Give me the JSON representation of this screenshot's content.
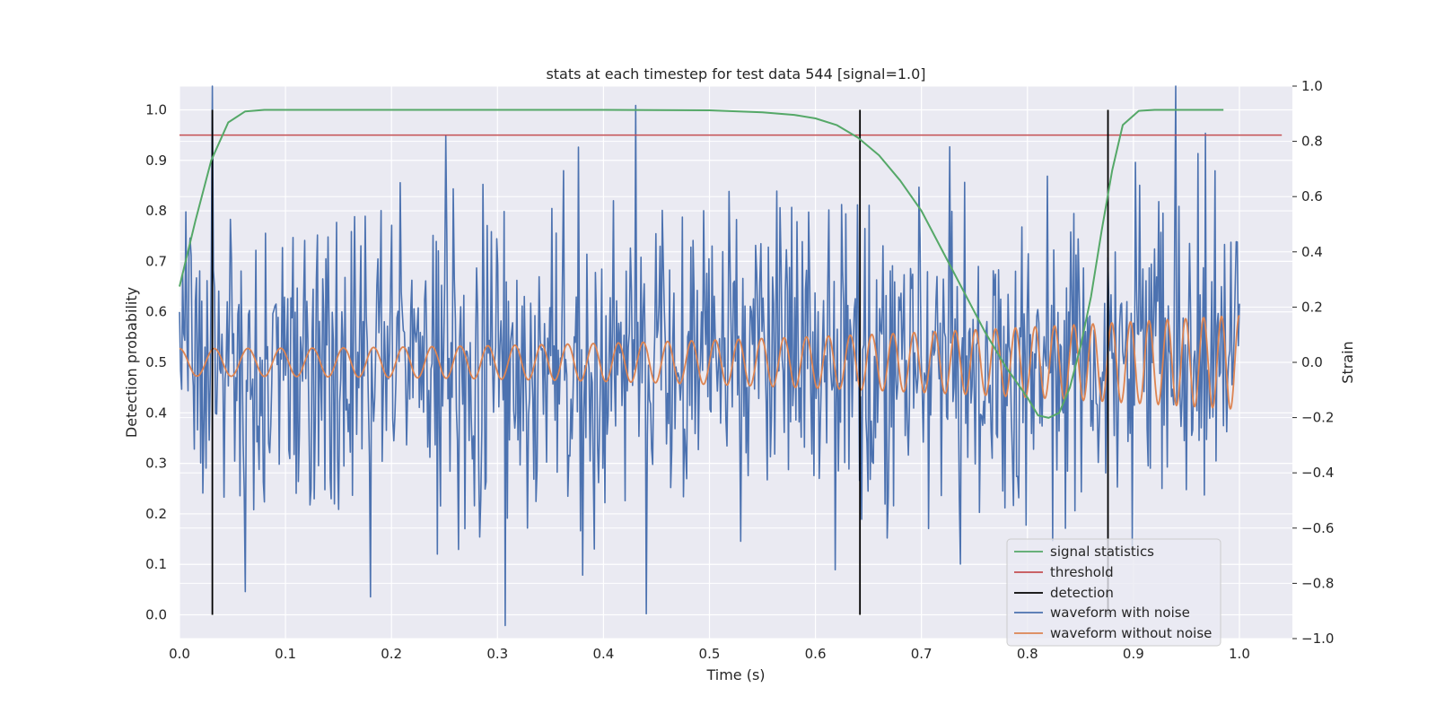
{
  "chart_data": {
    "type": "line",
    "title": "stats at each timestep for test data 544 [signal=1.0]",
    "xlabel": "Time (s)",
    "ylabel": "Detection probability",
    "ylabel_right": "Strain",
    "xlim": [
      0.0,
      1.05
    ],
    "ylim": [
      -0.047,
      1.047
    ],
    "ylim_right": [
      -1.0,
      1.0
    ],
    "grid": true,
    "legend_position": "lower right",
    "x_ticks": [
      "0.0",
      "0.1",
      "0.2",
      "0.3",
      "0.4",
      "0.5",
      "0.6",
      "0.7",
      "0.8",
      "0.9",
      "1.0"
    ],
    "y_ticks_left": [
      "0.0",
      "0.1",
      "0.2",
      "0.3",
      "0.4",
      "0.5",
      "0.6",
      "0.7",
      "0.8",
      "0.9",
      "1.0"
    ],
    "y_ticks_right": [
      "−1.0",
      "−0.8",
      "−0.6",
      "−0.4",
      "−0.2",
      "0.0",
      "0.2",
      "0.4",
      "0.6",
      "0.8",
      "1.0"
    ],
    "series": [
      {
        "name": "signal statistics",
        "color": "#55a868",
        "axis": "left",
        "x": [
          0.0,
          0.015,
          0.03,
          0.046,
          0.062,
          0.08,
          0.1,
          0.2,
          0.3,
          0.4,
          0.5,
          0.55,
          0.58,
          0.6,
          0.62,
          0.64,
          0.66,
          0.68,
          0.7,
          0.72,
          0.74,
          0.76,
          0.78,
          0.8,
          0.81,
          0.82,
          0.83,
          0.84,
          0.85,
          0.86,
          0.87,
          0.88,
          0.89,
          0.905,
          0.92,
          0.985
        ],
        "y": [
          0.65,
          0.78,
          0.9,
          0.975,
          0.997,
          1.0,
          1.0,
          1.0,
          1.0,
          1.0,
          0.999,
          0.995,
          0.99,
          0.983,
          0.97,
          0.945,
          0.91,
          0.86,
          0.8,
          0.72,
          0.64,
          0.56,
          0.49,
          0.43,
          0.395,
          0.39,
          0.4,
          0.45,
          0.53,
          0.63,
          0.76,
          0.88,
          0.97,
          0.998,
          1.0,
          1.0
        ]
      },
      {
        "name": "threshold",
        "color": "#c44e52",
        "axis": "left",
        "x": [
          0.0,
          1.04
        ],
        "y": [
          0.95,
          0.95
        ]
      },
      {
        "name": "detection",
        "color": "#000000",
        "axis": "left",
        "x_positions": [
          0.031,
          0.642,
          0.876
        ],
        "y_range": [
          0.0,
          1.0
        ]
      },
      {
        "name": "waveform with noise",
        "color": "#4c72b0",
        "axis": "right",
        "n_points": 1000,
        "x_range": [
          0.0,
          1.0
        ],
        "amplitude_std": 0.27,
        "peaks": [
          {
            "x": 0.031,
            "y": 1.0
          },
          {
            "x": 0.251,
            "y": 0.82
          },
          {
            "x": 0.43,
            "y": 0.93
          },
          {
            "x": 0.44,
            "y": -0.91
          },
          {
            "x": 0.062,
            "y": -0.83
          },
          {
            "x": 0.94,
            "y": 1.0
          },
          {
            "x": 0.38,
            "y": -0.77
          }
        ]
      },
      {
        "name": "waveform without noise",
        "color": "#dd8452",
        "axis": "right",
        "x_range": [
          0.0,
          1.0
        ],
        "amplitude_start": 0.05,
        "amplitude_end": 0.17,
        "frequency_start_hz": 30,
        "frequency_end_hz": 60
      }
    ]
  }
}
